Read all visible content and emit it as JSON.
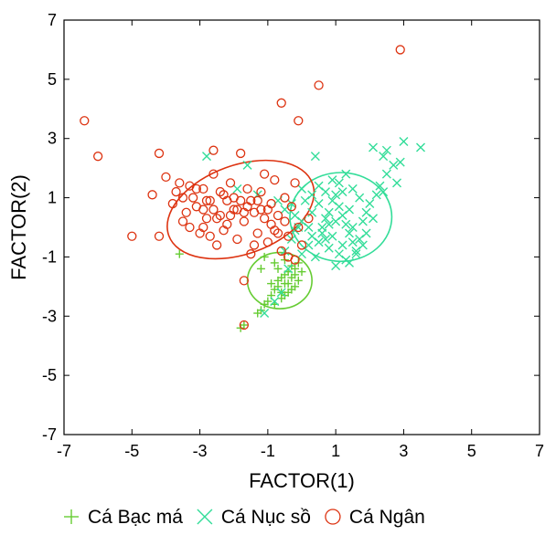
{
  "chart_data": {
    "type": "scatter",
    "xlabel": "FACTOR(1)",
    "ylabel": "FACTOR(2)",
    "xlim": [
      -7,
      7
    ],
    "ylim": [
      -7,
      7
    ],
    "xticks": [
      "-7",
      "-5",
      "-3",
      "-1",
      "1",
      "3",
      "5",
      "7"
    ],
    "yticks": [
      "-7",
      "-5",
      "-3",
      "-1",
      "1",
      "3",
      "5",
      "7"
    ],
    "grid": false,
    "legend_position": "bottom",
    "series": [
      {
        "name": "Cá Bạc má",
        "marker": "plus",
        "color": "#66cc33",
        "ellipse": {
          "cx": -0.65,
          "cy": -1.8,
          "rx": 0.95,
          "ry": 0.95,
          "angle": 0
        },
        "points": [
          [
            -3.6,
            -0.9
          ],
          [
            -1.8,
            -3.4
          ],
          [
            -1.7,
            -3.3
          ],
          [
            -1.3,
            -2.9
          ],
          [
            -1.2,
            -2.8
          ],
          [
            -1.1,
            -2.6
          ],
          [
            -1.0,
            -2.5
          ],
          [
            -0.9,
            -2.3
          ],
          [
            -0.8,
            -2.1
          ],
          [
            -0.7,
            -2.0
          ],
          [
            -0.7,
            -1.8
          ],
          [
            -0.6,
            -1.7
          ],
          [
            -0.5,
            -1.9
          ],
          [
            -0.5,
            -1.6
          ],
          [
            -0.4,
            -2.2
          ],
          [
            -0.4,
            -1.5
          ],
          [
            -0.3,
            -1.7
          ],
          [
            -0.3,
            -1.3
          ],
          [
            -0.2,
            -2.0
          ],
          [
            -0.2,
            -1.4
          ],
          [
            -0.1,
            -1.8
          ],
          [
            -0.1,
            -1.2
          ],
          [
            0.0,
            -1.5
          ],
          [
            -0.6,
            -2.4
          ],
          [
            -0.8,
            -2.6
          ],
          [
            -0.9,
            -1.9
          ],
          [
            -0.5,
            -1.1
          ],
          [
            -0.7,
            -1.4
          ],
          [
            -1.1,
            -1.0
          ],
          [
            -0.3,
            -2.1
          ],
          [
            -0.4,
            -1.9
          ],
          [
            -0.6,
            -2.2
          ],
          [
            -0.2,
            -1.6
          ],
          [
            -0.5,
            -2.3
          ],
          [
            -0.8,
            -1.2
          ],
          [
            -1.2,
            -1.4
          ]
        ]
      },
      {
        "name": "Cá Nục sồ",
        "marker": "x",
        "color": "#33dd99",
        "ellipse": {
          "cx": 1.15,
          "cy": 0.35,
          "rx": 1.5,
          "ry": 1.5,
          "angle": 0
        },
        "points": [
          [
            2.1,
            2.7
          ],
          [
            2.4,
            2.4
          ],
          [
            2.7,
            2.1
          ],
          [
            3.0,
            2.9
          ],
          [
            3.5,
            2.7
          ],
          [
            2.5,
            2.6
          ],
          [
            0.4,
            2.4
          ],
          [
            -2.8,
            2.4
          ],
          [
            -1.6,
            2.1
          ],
          [
            -1.9,
            1.3
          ],
          [
            -1.3,
            1.1
          ],
          [
            -0.7,
            0.9
          ],
          [
            -0.5,
            0.6
          ],
          [
            -0.2,
            0.4
          ],
          [
            0.0,
            0.2
          ],
          [
            0.2,
            0.0
          ],
          [
            0.3,
            -0.3
          ],
          [
            0.5,
            -0.5
          ],
          [
            0.6,
            -0.2
          ],
          [
            0.7,
            0.3
          ],
          [
            0.8,
            0.5
          ],
          [
            0.9,
            0.9
          ],
          [
            1.0,
            1.1
          ],
          [
            1.1,
            0.7
          ],
          [
            1.2,
            0.4
          ],
          [
            1.3,
            0.1
          ],
          [
            1.4,
            -0.2
          ],
          [
            1.5,
            -0.5
          ],
          [
            1.6,
            -0.8
          ],
          [
            1.7,
            -0.4
          ],
          [
            1.8,
            0.2
          ],
          [
            1.9,
            0.5
          ],
          [
            2.0,
            0.8
          ],
          [
            2.2,
            1.1
          ],
          [
            2.3,
            1.4
          ],
          [
            2.5,
            1.8
          ],
          [
            2.8,
            1.5
          ],
          [
            2.9,
            2.2
          ],
          [
            1.1,
            1.5
          ],
          [
            1.3,
            1.8
          ],
          [
            1.5,
            1.3
          ],
          [
            0.9,
            1.6
          ],
          [
            0.7,
            1.2
          ],
          [
            0.5,
            0.8
          ],
          [
            0.3,
            0.5
          ],
          [
            0.1,
            0.9
          ],
          [
            -0.1,
            0.0
          ],
          [
            -0.3,
            -0.4
          ],
          [
            -0.5,
            -0.8
          ],
          [
            -0.4,
            -1.4
          ],
          [
            -0.6,
            -2.2
          ],
          [
            -0.8,
            -2.5
          ],
          [
            -1.1,
            -2.9
          ],
          [
            1.0,
            -1.3
          ],
          [
            1.3,
            -1.1
          ],
          [
            1.6,
            -0.9
          ],
          [
            0.4,
            -1.0
          ],
          [
            0.8,
            -0.7
          ],
          [
            1.2,
            -0.6
          ],
          [
            1.9,
            -0.2
          ],
          [
            2.1,
            0.3
          ],
          [
            1.4,
            0.6
          ],
          [
            1.0,
            0.2
          ],
          [
            0.6,
            0.0
          ],
          [
            0.2,
            -0.6
          ],
          [
            0.0,
            -0.9
          ],
          [
            -0.2,
            -0.1
          ],
          [
            1.7,
            1.0
          ],
          [
            1.2,
            1.2
          ],
          [
            0.8,
            0.1
          ],
          [
            0.9,
            -0.3
          ],
          [
            1.5,
            0.0
          ],
          [
            1.8,
            -0.6
          ],
          [
            2.4,
            1.2
          ],
          [
            0.5,
            1.4
          ],
          [
            0.3,
            1.1
          ],
          [
            1.1,
            -0.9
          ],
          [
            1.4,
            -1.2
          ],
          [
            0.7,
            -0.4
          ],
          [
            -0.3,
            0.8
          ],
          [
            0.0,
            1.3
          ]
        ]
      },
      {
        "name": "Cá Ngân",
        "marker": "circle",
        "color": "#dd3311",
        "ellipse": {
          "cx": -1.8,
          "cy": 0.6,
          "rx": 2.25,
          "ry": 1.5,
          "angle": -20
        },
        "points": [
          [
            -6.4,
            3.6
          ],
          [
            -6.0,
            2.4
          ],
          [
            -5.0,
            -0.3
          ],
          [
            -4.2,
            -0.3
          ],
          [
            -4.2,
            2.5
          ],
          [
            -4.0,
            1.7
          ],
          [
            -3.8,
            0.8
          ],
          [
            -3.7,
            1.2
          ],
          [
            -3.6,
            1.5
          ],
          [
            -3.5,
            0.2
          ],
          [
            -3.4,
            0.5
          ],
          [
            -3.3,
            0.0
          ],
          [
            -3.2,
            1.0
          ],
          [
            -3.1,
            0.7
          ],
          [
            -3.0,
            -0.2
          ],
          [
            -2.9,
            1.3
          ],
          [
            -2.8,
            0.3
          ],
          [
            -2.7,
            0.9
          ],
          [
            -2.6,
            1.8
          ],
          [
            -2.5,
            -0.6
          ],
          [
            -2.4,
            0.4
          ],
          [
            -2.3,
            1.1
          ],
          [
            -2.2,
            0.1
          ],
          [
            -2.1,
            1.5
          ],
          [
            -2.0,
            0.6
          ],
          [
            -1.9,
            -0.4
          ],
          [
            -1.8,
            0.9
          ],
          [
            -1.7,
            0.2
          ],
          [
            -1.6,
            1.3
          ],
          [
            -1.5,
            -0.9
          ],
          [
            -1.4,
            0.5
          ],
          [
            -1.3,
            -0.2
          ],
          [
            -1.2,
            1.2
          ],
          [
            -1.1,
            0.3
          ],
          [
            -1.0,
            -0.5
          ],
          [
            -0.9,
            0.8
          ],
          [
            -0.8,
            -0.1
          ],
          [
            -0.7,
            0.4
          ],
          [
            -0.6,
            -0.8
          ],
          [
            -0.5,
            0.2
          ],
          [
            -0.4,
            -0.3
          ],
          [
            -0.3,
            0.7
          ],
          [
            -0.2,
            -1.1
          ],
          [
            -0.1,
            0.0
          ],
          [
            0.0,
            -0.6
          ],
          [
            -2.6,
            2.6
          ],
          [
            -1.8,
            2.5
          ],
          [
            -0.6,
            4.2
          ],
          [
            -0.1,
            3.6
          ],
          [
            0.5,
            4.8
          ],
          [
            2.9,
            6.0
          ],
          [
            -2.9,
            0.0
          ],
          [
            -3.1,
            1.3
          ],
          [
            -2.6,
            0.6
          ],
          [
            -2.2,
            0.9
          ],
          [
            -1.9,
            0.6
          ],
          [
            -1.5,
            0.9
          ],
          [
            -1.2,
            0.6
          ],
          [
            -0.9,
            0.1
          ],
          [
            -0.7,
            -0.2
          ],
          [
            -1.7,
            -1.8
          ],
          [
            -1.7,
            -3.3
          ],
          [
            -2.8,
            0.9
          ],
          [
            -2.4,
            1.2
          ],
          [
            -2.0,
            1.0
          ],
          [
            -1.6,
            0.7
          ],
          [
            -1.3,
            0.9
          ],
          [
            -1.0,
            0.6
          ],
          [
            -2.7,
            -0.3
          ],
          [
            -2.3,
            -0.1
          ],
          [
            -3.3,
            1.4
          ],
          [
            -3.5,
            1.0
          ],
          [
            -2.9,
            0.6
          ],
          [
            -2.5,
            0.3
          ],
          [
            -2.1,
            0.4
          ],
          [
            -1.7,
            0.5
          ],
          [
            -0.5,
            1.0
          ],
          [
            -0.8,
            1.6
          ],
          [
            -1.1,
            1.8
          ],
          [
            -0.2,
            1.5
          ],
          [
            -4.4,
            1.1
          ],
          [
            -0.4,
            -1.0
          ],
          [
            -1.4,
            -0.6
          ],
          [
            0.2,
            0.3
          ]
        ]
      }
    ]
  }
}
